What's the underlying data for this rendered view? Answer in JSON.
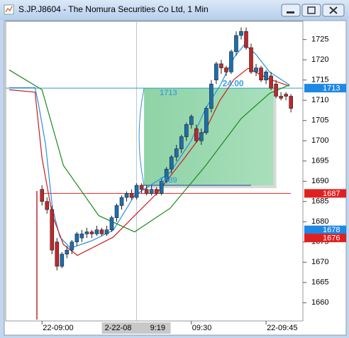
{
  "chart_data": {
    "type": "candlestick",
    "title": "S.JP.J8604 - The Nomura Securities Co Ltd, 1 Min",
    "ylim": [
      1655.5,
      1729.5
    ],
    "yticks": [
      1660,
      1665,
      1670,
      1675,
      1680,
      1685,
      1690,
      1695,
      1700,
      1705,
      1710,
      1715,
      1720,
      1725
    ],
    "xlim": [
      -7.3,
      52.4
    ],
    "xticks": [
      {
        "value": 0,
        "label": "22-09:00"
      },
      {
        "value": 30,
        "label": "09:30"
      },
      {
        "value": 45,
        "label": "22-09:45"
      }
    ],
    "up_color": "#1a6fb0",
    "down_color": "#c0282a",
    "candles": [
      {
        "x": 0,
        "o": 1688,
        "h": 1689,
        "l": 1684,
        "c": 1685
      },
      {
        "x": 1,
        "o": 1685,
        "h": 1686,
        "l": 1682,
        "c": 1683
      },
      {
        "x": 2,
        "o": 1683,
        "h": 1684,
        "l": 1672,
        "c": 1673
      },
      {
        "x": 3,
        "o": 1675,
        "h": 1676,
        "l": 1668,
        "c": 1669
      },
      {
        "x": 4,
        "o": 1669,
        "h": 1672.5,
        "l": 1668.5,
        "c": 1672
      },
      {
        "x": 5,
        "o": 1672,
        "h": 1674,
        "l": 1671,
        "c": 1673
      },
      {
        "x": 6,
        "o": 1673,
        "h": 1675.5,
        "l": 1672,
        "c": 1675
      },
      {
        "x": 7,
        "o": 1675,
        "h": 1677.5,
        "l": 1674,
        "c": 1677
      },
      {
        "x": 8,
        "o": 1676,
        "h": 1678,
        "l": 1675,
        "c": 1677
      },
      {
        "x": 9,
        "o": 1677,
        "h": 1678.5,
        "l": 1676,
        "c": 1677.5
      },
      {
        "x": 10,
        "o": 1677.5,
        "h": 1678,
        "l": 1676,
        "c": 1677
      },
      {
        "x": 11,
        "o": 1677,
        "h": 1679,
        "l": 1676.5,
        "c": 1678
      },
      {
        "x": 12,
        "o": 1678,
        "h": 1678.5,
        "l": 1676.5,
        "c": 1677
      },
      {
        "x": 13,
        "o": 1677,
        "h": 1679,
        "l": 1676.5,
        "c": 1678
      },
      {
        "x": 14,
        "o": 1678,
        "h": 1681.5,
        "l": 1677.5,
        "c": 1681
      },
      {
        "x": 15,
        "o": 1681,
        "h": 1684.5,
        "l": 1680,
        "c": 1684
      },
      {
        "x": 16,
        "o": 1684,
        "h": 1686.5,
        "l": 1683,
        "c": 1686
      },
      {
        "x": 17,
        "o": 1686,
        "h": 1687.5,
        "l": 1685,
        "c": 1687
      },
      {
        "x": 18,
        "o": 1687,
        "h": 1688,
        "l": 1685.5,
        "c": 1686
      },
      {
        "x": 19,
        "o": 1686,
        "h": 1689.5,
        "l": 1685.5,
        "c": 1689
      },
      {
        "x": 20,
        "o": 1689,
        "h": 1689.5,
        "l": 1687,
        "c": 1688
      },
      {
        "x": 21,
        "o": 1688,
        "h": 1689,
        "l": 1686.5,
        "c": 1687
      },
      {
        "x": 22,
        "o": 1687,
        "h": 1689,
        "l": 1686.5,
        "c": 1688
      },
      {
        "x": 23,
        "o": 1688,
        "h": 1688.5,
        "l": 1686.5,
        "c": 1687
      },
      {
        "x": 24,
        "o": 1687,
        "h": 1690.5,
        "l": 1686.5,
        "c": 1690
      },
      {
        "x": 25,
        "o": 1690,
        "h": 1693.5,
        "l": 1689.5,
        "c": 1693
      },
      {
        "x": 26,
        "o": 1693,
        "h": 1696.5,
        "l": 1692,
        "c": 1696
      },
      {
        "x": 27,
        "o": 1696,
        "h": 1699,
        "l": 1695,
        "c": 1698
      },
      {
        "x": 28,
        "o": 1698,
        "h": 1701.5,
        "l": 1697,
        "c": 1701
      },
      {
        "x": 29,
        "o": 1701,
        "h": 1704.5,
        "l": 1700,
        "c": 1704
      },
      {
        "x": 30,
        "o": 1704,
        "h": 1706.5,
        "l": 1703,
        "c": 1706
      },
      {
        "x": 31,
        "o": 1703,
        "h": 1704,
        "l": 1699.5,
        "c": 1700
      },
      {
        "x": 32,
        "o": 1700,
        "h": 1703,
        "l": 1699,
        "c": 1702
      },
      {
        "x": 33,
        "o": 1702,
        "h": 1708.5,
        "l": 1701.5,
        "c": 1708
      },
      {
        "x": 34,
        "o": 1708,
        "h": 1715,
        "l": 1707,
        "c": 1714
      },
      {
        "x": 35,
        "o": 1715,
        "h": 1719.5,
        "l": 1714,
        "c": 1719
      },
      {
        "x": 36,
        "o": 1719,
        "h": 1720,
        "l": 1716.5,
        "c": 1718
      },
      {
        "x": 37,
        "o": 1718,
        "h": 1718.5,
        "l": 1716,
        "c": 1717
      },
      {
        "x": 38,
        "o": 1717,
        "h": 1722.5,
        "l": 1716.5,
        "c": 1722
      },
      {
        "x": 39,
        "o": 1722,
        "h": 1727,
        "l": 1721,
        "c": 1726
      },
      {
        "x": 40,
        "o": 1726,
        "h": 1728,
        "l": 1725,
        "c": 1727
      },
      {
        "x": 41,
        "o": 1727,
        "h": 1728,
        "l": 1722.5,
        "c": 1723
      },
      {
        "x": 42,
        "o": 1723,
        "h": 1724,
        "l": 1716.5,
        "c": 1717
      },
      {
        "x": 43,
        "o": 1717,
        "h": 1719,
        "l": 1716,
        "c": 1718
      },
      {
        "x": 44,
        "o": 1718,
        "h": 1718.5,
        "l": 1714.5,
        "c": 1715
      },
      {
        "x": 45,
        "o": 1715,
        "h": 1717.5,
        "l": 1714,
        "c": 1717
      },
      {
        "x": 46,
        "o": 1716,
        "h": 1717,
        "l": 1712.5,
        "c": 1713
      },
      {
        "x": 47,
        "o": 1714,
        "h": 1715,
        "l": 1710.5,
        "c": 1711
      },
      {
        "x": 48,
        "o": 1711,
        "h": 1712,
        "l": 1710,
        "c": 1710.5
      },
      {
        "x": 49,
        "o": 1711.5,
        "h": 1712,
        "l": 1710,
        "c": 1711
      },
      {
        "x": 50,
        "o": 1711,
        "h": 1711.5,
        "l": 1707,
        "c": 1708
      }
    ],
    "lines": [
      {
        "color": "#2a8fe0",
        "x": [
          -6.6,
          -1.4,
          -0.7,
          0.7,
          2.1,
          3.6,
          5.7,
          10,
          14.3,
          18.6,
          25.7,
          30,
          32.9,
          35.7,
          38.6,
          40.7,
          42.9,
          45.7,
          49.7
        ],
        "values": [
          1713.1,
          1713.1,
          1709,
          1699.2,
          1683.3,
          1676.2,
          1673.5,
          1675.3,
          1677.9,
          1686.5,
          1692.1,
          1700.1,
          1708.1,
          1713.5,
          1720.6,
          1723.8,
          1721.4,
          1717,
          1713.8
        ]
      },
      {
        "color": "#c81e1e",
        "x": [
          -6.6,
          -1.4,
          0,
          2.1,
          4.3,
          7.1,
          10,
          14.3,
          18.6,
          22.9,
          28.6,
          32.9,
          35.7,
          38.6,
          41.4,
          45.7,
          49.7
        ],
        "values": [
          1712.6,
          1712,
          1695.7,
          1681.5,
          1674.4,
          1671.7,
          1673.5,
          1676.2,
          1681.5,
          1686.8,
          1695.7,
          1702.8,
          1709.9,
          1715.2,
          1717.9,
          1715.2,
          1713.5
        ]
      },
      {
        "color": "#1c8a1c",
        "x": [
          -6.6,
          0,
          4.3,
          11.4,
          18.6,
          25.7,
          32.9,
          40,
          45.7,
          49.7
        ],
        "values": [
          1717.5,
          1712.6,
          1693.9,
          1681.5,
          1677.5,
          1683.3,
          1693.9,
          1705.5,
          1711.7,
          1713.8
        ]
      }
    ],
    "hlines": [
      {
        "value": 1713,
        "color": "#2aa0c0"
      },
      {
        "value": 1687,
        "color": "#e02828",
        "x": [
          0,
          50
        ]
      }
    ],
    "price_labels": [
      {
        "value": 1713,
        "color": "#1e88e5"
      },
      {
        "value": 1687,
        "color": "#e02020"
      },
      {
        "value": 1678,
        "color": "#1e88e5"
      },
      {
        "value": 1676,
        "color": "#e02020"
      }
    ],
    "cursor": {
      "x": 19,
      "date": "2-22-08",
      "time": "9:19"
    },
    "range_box": {
      "x": [
        20.5,
        46.5
      ],
      "y": [
        1689,
        1713
      ],
      "top_label": "1713",
      "bottom_label": "1689",
      "diff": {
        "value": 24,
        "label": "24.00"
      }
    }
  }
}
